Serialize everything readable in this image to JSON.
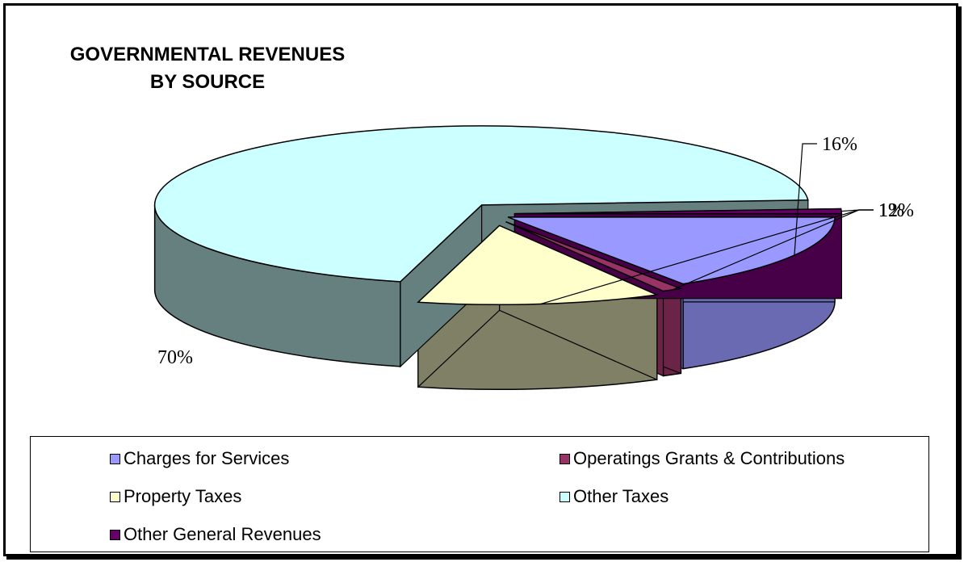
{
  "chart_data": {
    "type": "pie",
    "title_line1": "GOVERNMENTAL REVENUES",
    "title_line2": "BY SOURCE",
    "slices": [
      {
        "name": "Charges for Services",
        "value": 16,
        "label": "16%",
        "color": "#9999FF",
        "side_color": "#6A6AB3"
      },
      {
        "name": "Operatings Grants & Contributions",
        "value": 1,
        "label": "1%",
        "color": "#993366",
        "side_color": "#6B2447"
      },
      {
        "name": "Property Taxes",
        "value": 12,
        "label": "12%",
        "color": "#FFFFCC",
        "side_color": "#808066"
      },
      {
        "name": "Other Taxes",
        "value": 70,
        "label": "70%",
        "color": "#CCFFFF",
        "side_color": "#668080"
      },
      {
        "name": "Other General Revenues",
        "value": 1,
        "label": "1%",
        "color": "#660066",
        "side_color": "#470047"
      }
    ],
    "legend_position": "bottom"
  }
}
